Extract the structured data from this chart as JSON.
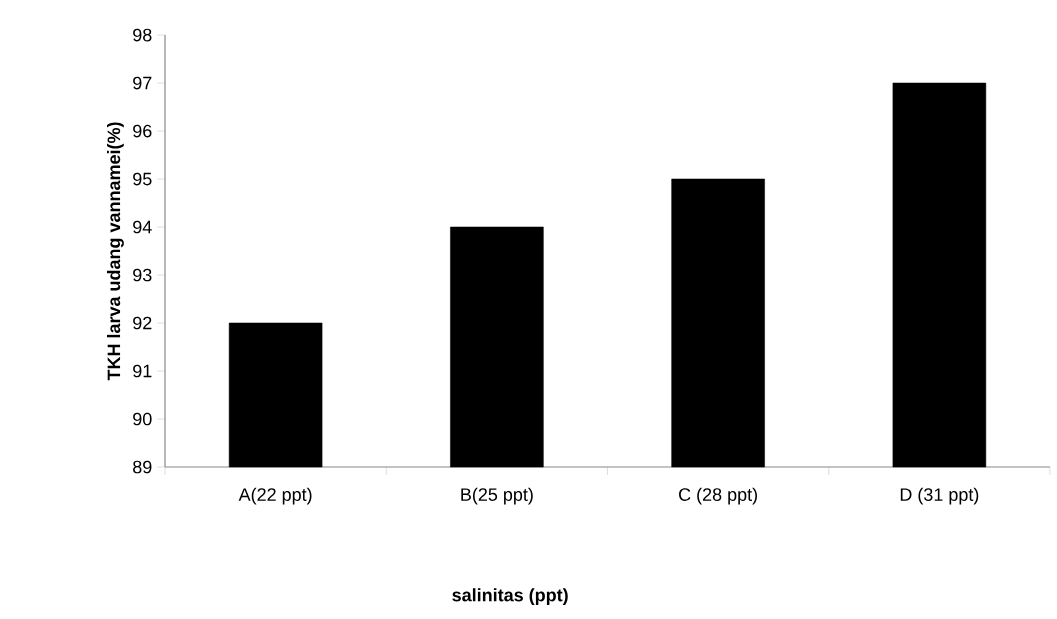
{
  "chart_data": {
    "type": "bar",
    "xlabel": "salinitas (ppt)",
    "ylabel": "TKH larva udang vannamei(%)",
    "categories": [
      "A(22 ppt)",
      "B(25 ppt)",
      "C (28 ppt)",
      "D (31 ppt)"
    ],
    "values": [
      92,
      94,
      95,
      97
    ],
    "color": "#000000",
    "ylim": [
      89,
      98
    ],
    "yticks": [
      89,
      90,
      91,
      92,
      93,
      94,
      95,
      96,
      97,
      98
    ]
  }
}
